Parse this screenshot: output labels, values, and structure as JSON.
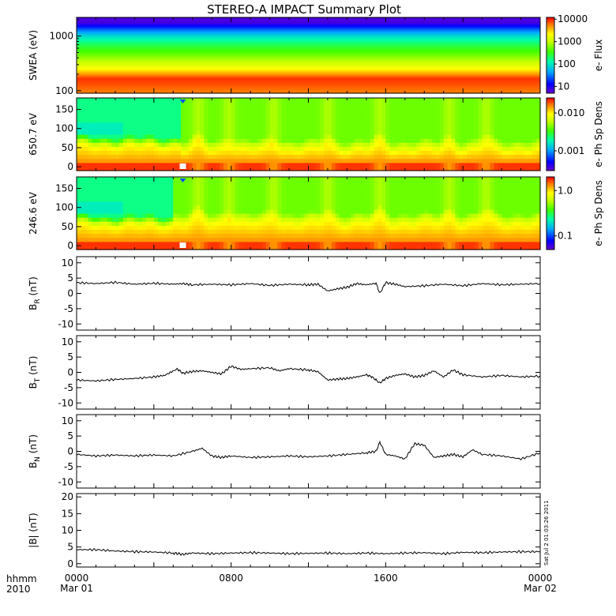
{
  "header": {
    "title": "STEREO-A IMPACT Summary Plot"
  },
  "footer": {
    "hhmm": "hhmm",
    "year": "2010",
    "stamp": "Sat Jul  2 01:03:26 2011"
  },
  "colors": {
    "line": "#000000",
    "background": "#ffffff",
    "colormap": [
      "#6a00d0",
      "#0000ff",
      "#00a8ff",
      "#00ffa8",
      "#40ff00",
      "#c8ff00",
      "#ffff00",
      "#ff8000",
      "#ff0000"
    ]
  },
  "chart_data": [
    {
      "type": "heatmap",
      "panel": "swea",
      "ylabel": "SWEA (eV)",
      "yscale": "log",
      "ylim": [
        90,
        2200
      ],
      "yticks": [
        "1000",
        "100"
      ],
      "colorbar_label": "e- Flux",
      "colorbar_scale": "log",
      "colorbar_range": [
        5,
        12000
      ],
      "colorbar_ticks": [
        "10000",
        "1000",
        "100",
        "10"
      ],
      "energy_profile": [
        {
          "energy": 100,
          "level": 0.88
        },
        {
          "energy": 130,
          "level": 0.92
        },
        {
          "energy": 170,
          "level": 0.95
        },
        {
          "energy": 200,
          "level": 0.86
        },
        {
          "energy": 260,
          "level": 0.74
        },
        {
          "energy": 350,
          "level": 0.62
        },
        {
          "energy": 500,
          "level": 0.52
        },
        {
          "energy": 700,
          "level": 0.44
        },
        {
          "energy": 1000,
          "level": 0.33
        },
        {
          "energy": 1400,
          "level": 0.18
        },
        {
          "energy": 1800,
          "level": 0.04
        }
      ]
    },
    {
      "type": "heatmap",
      "panel": "pad650",
      "ylabel": "650.7 eV",
      "ylim": [
        -10,
        180
      ],
      "yticks": [
        0,
        50,
        100,
        150
      ],
      "colorbar_label": "e- Ph Sp Dens",
      "colorbar_scale": "log",
      "colorbar_range": [
        0.0003,
        0.025
      ],
      "colorbar_ticks": [
        "0.010",
        "0.001"
      ],
      "quiet_period_hours": [
        0,
        5.4
      ],
      "boundary_hours": [
        6.3,
        7.9,
        10.2,
        13.0,
        15.7,
        19.3,
        21.2
      ],
      "gap_hour": 5.5
    },
    {
      "type": "heatmap",
      "panel": "pad246",
      "ylabel": "246.6 eV",
      "ylim": [
        -10,
        180
      ],
      "yticks": [
        0,
        50,
        100,
        150
      ],
      "colorbar_label": "e- Ph Sp Dens",
      "colorbar_scale": "log",
      "colorbar_range": [
        0.05,
        2.0
      ],
      "colorbar_ticks": [
        "1.0",
        "0.1"
      ],
      "quiet_period_hours": [
        0,
        5.0
      ],
      "boundary_hours": [
        6.3,
        7.9,
        10.2,
        13.0,
        15.7,
        19.3,
        21.2
      ],
      "gap_hour": 5.5
    },
    {
      "type": "line",
      "panel": "br",
      "ylabel": "B",
      "ylabel_sub": "R",
      "ylabel_unit": "(nT)",
      "ylim": [
        -12,
        12
      ],
      "yticks": [
        -10,
        -5,
        0,
        5,
        10
      ],
      "x": [
        0,
        1,
        2,
        3,
        4,
        5,
        5.5,
        6,
        7,
        8,
        9,
        10,
        11,
        12,
        12.5,
        13,
        13.5,
        14,
        14.5,
        15,
        15.5,
        15.7,
        16,
        16.5,
        17,
        18,
        19,
        20,
        21,
        22,
        23,
        24
      ],
      "values": [
        3.5,
        3.2,
        3.6,
        3.0,
        3.3,
        3.0,
        3.2,
        2.8,
        3.0,
        2.8,
        3.2,
        2.6,
        3.0,
        2.8,
        3.0,
        0.8,
        1.5,
        2.0,
        3.2,
        2.8,
        3.3,
        0.0,
        3.5,
        3.0,
        2.2,
        2.5,
        3.0,
        2.5,
        3.2,
        2.8,
        3.0,
        3.2
      ]
    },
    {
      "type": "line",
      "panel": "bt",
      "ylabel": "B",
      "ylabel_sub": "T",
      "ylabel_unit": "(nT)",
      "ylim": [
        -12,
        12
      ],
      "yticks": [
        -10,
        -5,
        0,
        5,
        10
      ],
      "x": [
        0,
        1,
        2,
        3,
        4,
        4.5,
        5.2,
        5.5,
        6,
        6.5,
        7,
        7.5,
        8,
        8.5,
        9,
        10,
        10.5,
        11,
        12,
        12.5,
        13,
        13.5,
        14,
        14.5,
        15,
        15.3,
        15.7,
        16,
        16.5,
        17,
        17.5,
        18,
        18.5,
        19,
        19.5,
        20,
        21,
        22,
        23,
        24
      ],
      "values": [
        -2.5,
        -2.8,
        -2.3,
        -2.0,
        -1.5,
        -1.0,
        1.2,
        -0.3,
        0.3,
        0.5,
        0.0,
        -0.5,
        2.0,
        1.0,
        1.2,
        1.5,
        0.5,
        1.2,
        0.8,
        0.2,
        -2.5,
        -2.2,
        -2.0,
        -1.5,
        -0.8,
        -1.5,
        -3.5,
        -2.0,
        -1.0,
        -0.5,
        -1.5,
        -1.0,
        0.5,
        -1.5,
        0.8,
        -0.8,
        -1.5,
        -1.0,
        -1.5,
        -1.2
      ]
    },
    {
      "type": "line",
      "panel": "bn",
      "ylabel": "B",
      "ylabel_sub": "N",
      "ylabel_unit": "(nT)",
      "ylim": [
        -12,
        12
      ],
      "yticks": [
        -10,
        -5,
        0,
        5,
        10
      ],
      "x": [
        0,
        1,
        2,
        3,
        4,
        5,
        6,
        6.5,
        7,
        7.5,
        8,
        9,
        10,
        11,
        12,
        13,
        14,
        15,
        15.5,
        15.7,
        16,
        16.5,
        17,
        17.5,
        18,
        18.5,
        19,
        19.5,
        20,
        20.5,
        21,
        22,
        23,
        24
      ],
      "values": [
        -1.0,
        -1.5,
        -1.2,
        -1.5,
        -1.2,
        -1.5,
        0.0,
        1.0,
        -1.5,
        -2.0,
        -1.5,
        -2.0,
        -1.8,
        -1.5,
        -1.8,
        -1.5,
        -1.0,
        -0.5,
        0.0,
        3.0,
        -1.0,
        -1.5,
        -2.5,
        2.5,
        2.0,
        -2.0,
        -1.5,
        -1.0,
        -1.8,
        0.5,
        -1.0,
        -1.5,
        -2.5,
        -0.5
      ]
    },
    {
      "type": "line",
      "panel": "bmag",
      "ylabel": "|B|",
      "ylabel_unit": "(nT)",
      "ylim": [
        -1,
        21
      ],
      "yticks": [
        0,
        5,
        10,
        15,
        20
      ],
      "x": [
        0,
        1,
        2,
        3,
        4,
        5,
        5.5,
        6,
        7,
        8,
        9,
        10,
        11,
        12,
        13,
        14,
        15,
        16,
        17,
        18,
        19,
        20,
        21,
        22,
        23,
        24
      ],
      "values": [
        4.2,
        4.2,
        3.8,
        3.6,
        3.5,
        3.2,
        2.8,
        3.2,
        3.0,
        3.2,
        3.3,
        3.2,
        3.0,
        3.1,
        3.2,
        3.0,
        3.2,
        3.0,
        3.2,
        3.3,
        3.0,
        3.4,
        3.3,
        3.5,
        3.6,
        3.6
      ]
    }
  ],
  "time_axis": {
    "ticks": [
      {
        "hour": 0,
        "label": "0000",
        "sublabel": "Mar 01"
      },
      {
        "hour": 8,
        "label": "0800",
        "sublabel": ""
      },
      {
        "hour": 16,
        "label": "1600",
        "sublabel": ""
      },
      {
        "hour": 24,
        "label": "0000",
        "sublabel": "Mar 02"
      }
    ]
  }
}
